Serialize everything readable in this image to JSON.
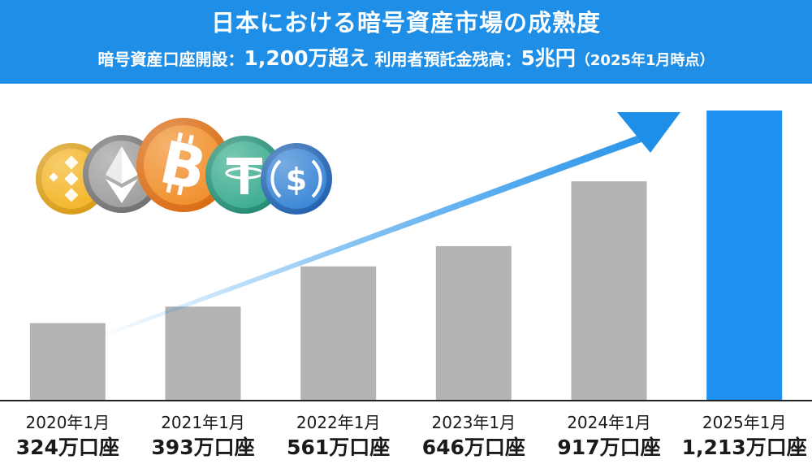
{
  "banner": {
    "title": "日本における暗号資産市場の成熟度",
    "accounts_label": "暗号資産口座開設：",
    "accounts_value": "1,200万超え",
    "deposits_label": "利用者預託金残高：",
    "deposits_value": "5兆円",
    "as_of": "（2025年1月時点）"
  },
  "colors": {
    "banner": "#1f8ee6",
    "bar_gray": "#b3b3b3",
    "bar_highlight": "#1e90ef",
    "arrow": "#1e8fe8"
  },
  "coins": [
    "binance-coin-icon",
    "ethereum-icon",
    "bitcoin-icon",
    "tether-icon",
    "usd-coin-icon"
  ],
  "chart_data": {
    "type": "bar",
    "categories": [
      "2020年1月",
      "2021年1月",
      "2022年1月",
      "2023年1月",
      "2024年1月",
      "2025年1月"
    ],
    "values": [
      324,
      393,
      561,
      646,
      917,
      1213
    ],
    "value_labels": [
      "324万口座",
      "393万口座",
      "561万口座",
      "646万口座",
      "917万口座",
      "1,213万口座"
    ],
    "highlight_index": 5,
    "ylim": [
      0,
      1213
    ],
    "xlabel": "",
    "ylabel": "",
    "grid": false
  }
}
